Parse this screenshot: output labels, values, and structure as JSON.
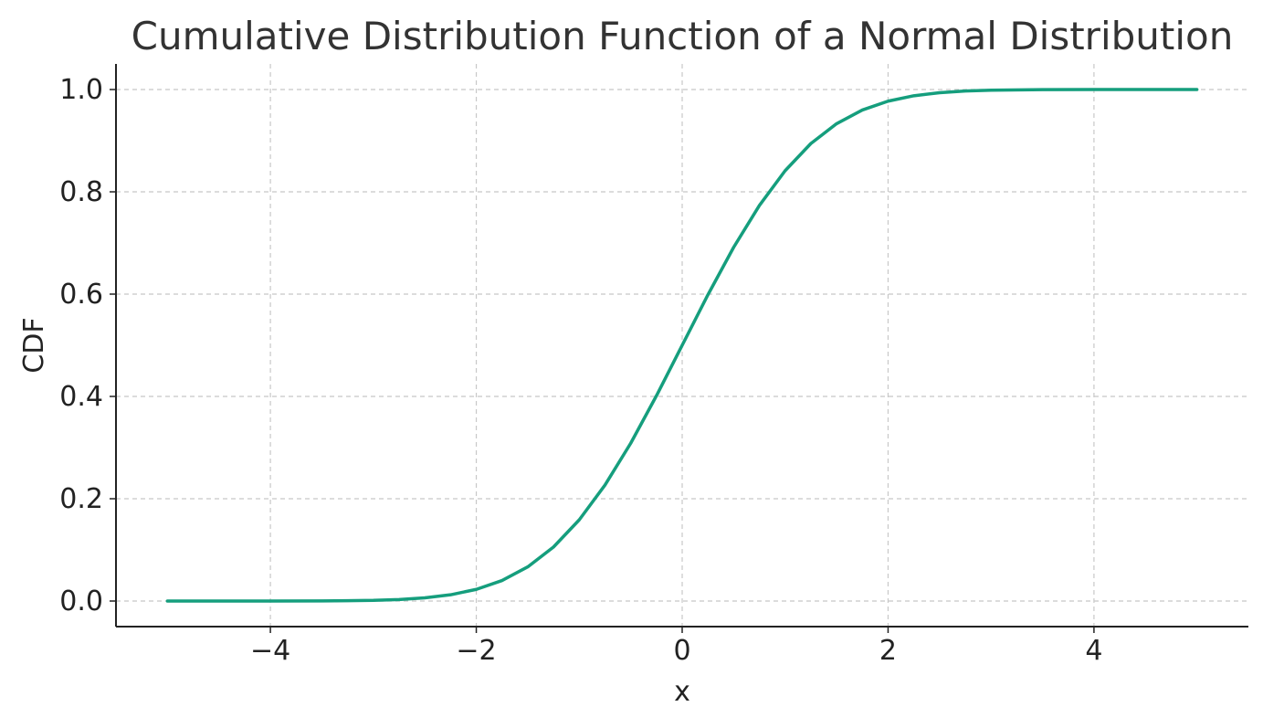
{
  "chart_data": {
    "type": "line",
    "title": "Cumulative Distribution Function of a Normal Distribution",
    "xlabel": "x",
    "ylabel": "CDF",
    "xlim": [
      -5.5,
      5.5
    ],
    "ylim": [
      -0.05,
      1.05
    ],
    "grid": true,
    "x_ticks": [
      {
        "value": -4,
        "label": "−4"
      },
      {
        "value": -2,
        "label": "−2"
      },
      {
        "value": 0,
        "label": "0"
      },
      {
        "value": 2,
        "label": "2"
      },
      {
        "value": 4,
        "label": "4"
      }
    ],
    "y_ticks": [
      {
        "value": 0.0,
        "label": "0.0"
      },
      {
        "value": 0.2,
        "label": "0.2"
      },
      {
        "value": 0.4,
        "label": "0.4"
      },
      {
        "value": 0.6,
        "label": "0.6"
      },
      {
        "value": 0.8,
        "label": "0.8"
      },
      {
        "value": 1.0,
        "label": "1.0"
      }
    ],
    "series": [
      {
        "color": "#159e7d",
        "x": [
          -5,
          -4.5,
          -4,
          -3.5,
          -3,
          -2.75,
          -2.5,
          -2.25,
          -2,
          -1.75,
          -1.5,
          -1.25,
          -1,
          -0.75,
          -0.5,
          -0.25,
          0,
          0.25,
          0.5,
          0.75,
          1,
          1.25,
          1.5,
          1.75,
          2,
          2.25,
          2.5,
          2.75,
          3,
          3.5,
          4,
          4.5,
          5
        ],
        "y": [
          0.0,
          0.0,
          0.0,
          0.0002,
          0.0013,
          0.003,
          0.0062,
          0.0122,
          0.0228,
          0.0401,
          0.0668,
          0.1056,
          0.1587,
          0.2266,
          0.3085,
          0.4013,
          0.5,
          0.5987,
          0.6915,
          0.7734,
          0.8413,
          0.8944,
          0.9332,
          0.9599,
          0.9772,
          0.9878,
          0.9938,
          0.997,
          0.9987,
          0.9998,
          1.0,
          1.0,
          1.0
        ]
      }
    ]
  }
}
